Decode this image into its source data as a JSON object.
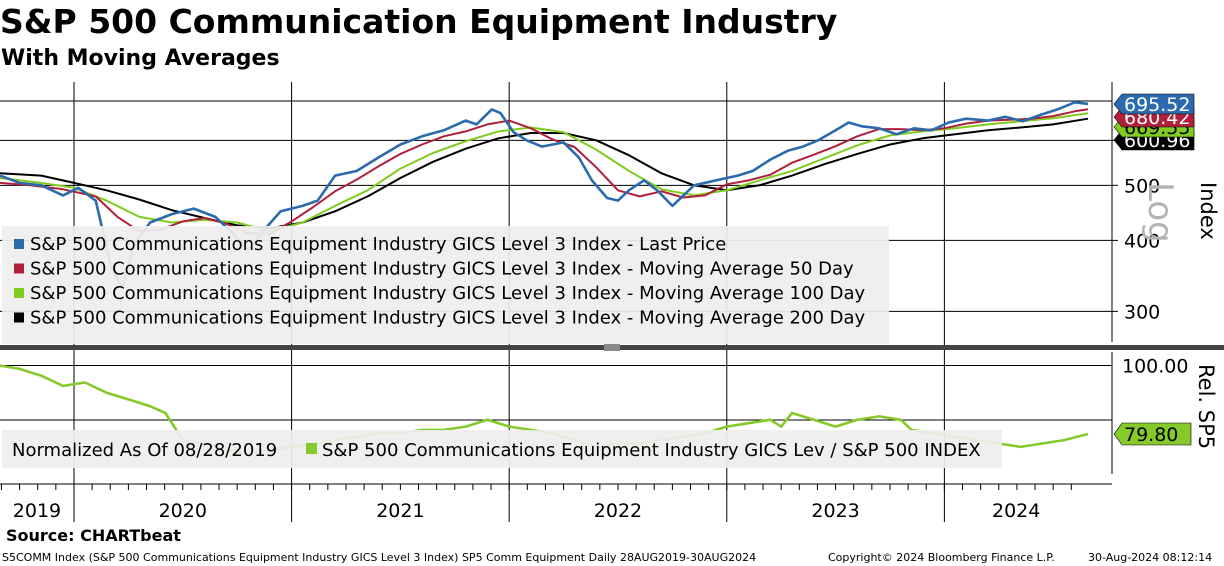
{
  "header": {
    "title": "S&P 500 Communication Equipment Industry",
    "subtitle": "With Moving Averages"
  },
  "source": "Source: CHARTbeat",
  "footer": {
    "description": "S5COMM Index (S&P 500 Communications Equipment Industry GICS Level 3 Index) SP5 Comm Equipment  Daily 28AUG2019-30AUG2024",
    "copyright": "Copyright© 2024 Bloomberg Finance L.P.",
    "timestamp": "30-Aug-2024 08:12:14"
  },
  "colors": {
    "last_price": "#2a6aad",
    "ma50": "#b0203a",
    "ma100": "#7fcc1e",
    "ma200": "#000000",
    "relative": "#86c92a",
    "grid": "#d9d9d9",
    "legend_bg": "#eeeeee"
  },
  "chart_data": [
    {
      "type": "line",
      "scale": "log",
      "scale_label": "Log",
      "ylabel": "Index",
      "yticks": [
        300,
        400,
        500,
        600
      ],
      "ylim": [
        265,
        760
      ],
      "x_years": [
        "2019",
        "2020",
        "2021",
        "2022",
        "2023",
        "2024"
      ],
      "x_range": [
        2019.66,
        2024.66
      ],
      "series": [
        {
          "name": "S&P 500 Communications Equipment Industry GICS Level 3 Index - Last Price",
          "color_key": "last_price",
          "last_value_label": "695.52",
          "points": [
            [
              2019.66,
              520
            ],
            [
              2019.75,
              505
            ],
            [
              2019.85,
              500
            ],
            [
              2019.95,
              480
            ],
            [
              2020.02,
              495
            ],
            [
              2020.1,
              470
            ],
            [
              2020.17,
              360
            ],
            [
              2020.22,
              330
            ],
            [
              2020.28,
              395
            ],
            [
              2020.35,
              430
            ],
            [
              2020.45,
              445
            ],
            [
              2020.55,
              455
            ],
            [
              2020.65,
              440
            ],
            [
              2020.72,
              415
            ],
            [
              2020.8,
              385
            ],
            [
              2020.88,
              420
            ],
            [
              2020.95,
              450
            ],
            [
              2021.05,
              460
            ],
            [
              2021.12,
              470
            ],
            [
              2021.2,
              520
            ],
            [
              2021.3,
              530
            ],
            [
              2021.4,
              560
            ],
            [
              2021.5,
              590
            ],
            [
              2021.6,
              610
            ],
            [
              2021.7,
              625
            ],
            [
              2021.8,
              650
            ],
            [
              2021.85,
              640
            ],
            [
              2021.92,
              680
            ],
            [
              2021.96,
              670
            ],
            [
              2022.02,
              620
            ],
            [
              2022.08,
              600
            ],
            [
              2022.15,
              585
            ],
            [
              2022.25,
              595
            ],
            [
              2022.32,
              560
            ],
            [
              2022.38,
              510
            ],
            [
              2022.45,
              475
            ],
            [
              2022.5,
              470
            ],
            [
              2022.55,
              490
            ],
            [
              2022.62,
              510
            ],
            [
              2022.68,
              490
            ],
            [
              2022.75,
              460
            ],
            [
              2022.85,
              500
            ],
            [
              2022.95,
              510
            ],
            [
              2023.05,
              520
            ],
            [
              2023.12,
              530
            ],
            [
              2023.2,
              555
            ],
            [
              2023.28,
              575
            ],
            [
              2023.35,
              585
            ],
            [
              2023.42,
              600
            ],
            [
              2023.5,
              625
            ],
            [
              2023.56,
              645
            ],
            [
              2023.62,
              635
            ],
            [
              2023.7,
              630
            ],
            [
              2023.78,
              615
            ],
            [
              2023.86,
              630
            ],
            [
              2023.94,
              625
            ],
            [
              2024.02,
              645
            ],
            [
              2024.1,
              655
            ],
            [
              2024.2,
              650
            ],
            [
              2024.28,
              660
            ],
            [
              2024.36,
              648
            ],
            [
              2024.44,
              665
            ],
            [
              2024.52,
              680
            ],
            [
              2024.6,
              700
            ],
            [
              2024.66,
              695.52
            ]
          ]
        },
        {
          "name": "S&P 500 Communications Equipment Industry GICS Level 3 Index - Moving Average 50 Day",
          "color_key": "ma50",
          "last_value_label": "680.42",
          "points": [
            [
              2019.66,
              505
            ],
            [
              2019.8,
              500
            ],
            [
              2019.95,
              492
            ],
            [
              2020.1,
              478
            ],
            [
              2020.2,
              440
            ],
            [
              2020.3,
              415
            ],
            [
              2020.4,
              418
            ],
            [
              2020.5,
              432
            ],
            [
              2020.6,
              438
            ],
            [
              2020.7,
              428
            ],
            [
              2020.8,
              412
            ],
            [
              2020.9,
              410
            ],
            [
              2021.0,
              432
            ],
            [
              2021.1,
              458
            ],
            [
              2021.2,
              488
            ],
            [
              2021.3,
              512
            ],
            [
              2021.4,
              540
            ],
            [
              2021.5,
              568
            ],
            [
              2021.6,
              590
            ],
            [
              2021.7,
              610
            ],
            [
              2021.8,
              622
            ],
            [
              2021.9,
              640
            ],
            [
              2022.0,
              650
            ],
            [
              2022.1,
              630
            ],
            [
              2022.2,
              602
            ],
            [
              2022.3,
              584
            ],
            [
              2022.4,
              538
            ],
            [
              2022.5,
              490
            ],
            [
              2022.6,
              478
            ],
            [
              2022.7,
              488
            ],
            [
              2022.8,
              476
            ],
            [
              2022.9,
              480
            ],
            [
              2023.0,
              502
            ],
            [
              2023.1,
              510
            ],
            [
              2023.2,
              522
            ],
            [
              2023.3,
              548
            ],
            [
              2023.4,
              566
            ],
            [
              2023.5,
              586
            ],
            [
              2023.6,
              610
            ],
            [
              2023.7,
              628
            ],
            [
              2023.8,
              628
            ],
            [
              2023.9,
              625
            ],
            [
              2024.0,
              630
            ],
            [
              2024.1,
              642
            ],
            [
              2024.2,
              650
            ],
            [
              2024.3,
              652
            ],
            [
              2024.4,
              655
            ],
            [
              2024.5,
              662
            ],
            [
              2024.6,
              675
            ],
            [
              2024.66,
              680.42
            ]
          ]
        },
        {
          "name": "S&P 500 Communications Equipment Industry GICS Level 3 Index - Moving Average 100 Day",
          "color_key": "ma100",
          "last_value_label": "669.55",
          "points": [
            [
              2019.66,
              515
            ],
            [
              2019.85,
              505
            ],
            [
              2020.0,
              495
            ],
            [
              2020.15,
              470
            ],
            [
              2020.3,
              440
            ],
            [
              2020.45,
              430
            ],
            [
              2020.6,
              435
            ],
            [
              2020.75,
              430
            ],
            [
              2020.9,
              415
            ],
            [
              2021.05,
              430
            ],
            [
              2021.2,
              460
            ],
            [
              2021.35,
              490
            ],
            [
              2021.5,
              535
            ],
            [
              2021.65,
              570
            ],
            [
              2021.8,
              598
            ],
            [
              2021.95,
              622
            ],
            [
              2022.1,
              632
            ],
            [
              2022.25,
              620
            ],
            [
              2022.4,
              578
            ],
            [
              2022.55,
              530
            ],
            [
              2022.7,
              492
            ],
            [
              2022.85,
              480
            ],
            [
              2023.0,
              490
            ],
            [
              2023.15,
              510
            ],
            [
              2023.3,
              530
            ],
            [
              2023.45,
              558
            ],
            [
              2023.6,
              588
            ],
            [
              2023.75,
              612
            ],
            [
              2023.9,
              622
            ],
            [
              2024.05,
              630
            ],
            [
              2024.2,
              640
            ],
            [
              2024.35,
              648
            ],
            [
              2024.5,
              656
            ],
            [
              2024.66,
              669.55
            ]
          ]
        },
        {
          "name": "S&P 500 Communications Equipment Industry GICS Level 3 Index - Moving Average 200 Day",
          "color_key": "ma200",
          "last_value_label": "600.96",
          "points": [
            [
              2019.66,
              525
            ],
            [
              2019.85,
              520
            ],
            [
              2020.0,
              505
            ],
            [
              2020.15,
              490
            ],
            [
              2020.3,
              472
            ],
            [
              2020.45,
              452
            ],
            [
              2020.6,
              438
            ],
            [
              2020.75,
              425
            ],
            [
              2020.9,
              420
            ],
            [
              2021.05,
              430
            ],
            [
              2021.2,
              450
            ],
            [
              2021.35,
              478
            ],
            [
              2021.5,
              515
            ],
            [
              2021.65,
              550
            ],
            [
              2021.8,
              580
            ],
            [
              2021.95,
              605
            ],
            [
              2022.1,
              618
            ],
            [
              2022.25,
              618
            ],
            [
              2022.4,
              600
            ],
            [
              2022.55,
              565
            ],
            [
              2022.7,
              525
            ],
            [
              2022.85,
              500
            ],
            [
              2023.0,
              490
            ],
            [
              2023.15,
              500
            ],
            [
              2023.3,
              520
            ],
            [
              2023.45,
              545
            ],
            [
              2023.6,
              568
            ],
            [
              2023.75,
              590
            ],
            [
              2023.9,
              605
            ],
            [
              2024.05,
              615
            ],
            [
              2024.2,
              625
            ],
            [
              2024.35,
              632
            ],
            [
              2024.5,
              640
            ],
            [
              2024.66,
              655
            ]
          ]
        }
      ],
      "legend": [
        "S&P 500 Communications Equipment Industry GICS Level 3 Index - Last Price",
        "S&P 500 Communications Equipment Industry GICS Level 3 Index - Moving Average 50 Day",
        "S&P 500 Communications Equipment Industry GICS Level 3 Index - Moving Average 100 Day",
        "S&P 500 Communications Equipment Industry GICS Level 3 Index - Moving Average 200 Day"
      ]
    },
    {
      "type": "line",
      "ylabel": "Rel. SP5",
      "yticks": [
        100
      ],
      "ytick_labels": [
        "100.00"
      ],
      "ylim": [
        68,
        104
      ],
      "series": [
        {
          "name": "S&P 500 Communications Equipment Industry GICS Lev / S&P 500 INDEX",
          "color_key": "relative",
          "last_value_label": "79.80",
          "points": [
            [
              2019.66,
              100
            ],
            [
              2019.75,
              99
            ],
            [
              2019.85,
              97
            ],
            [
              2019.95,
              94
            ],
            [
              2020.05,
              95
            ],
            [
              2020.15,
              92
            ],
            [
              2020.25,
              90
            ],
            [
              2020.35,
              88
            ],
            [
              2020.42,
              86
            ],
            [
              2020.5,
              78
            ],
            [
              2020.6,
              77
            ],
            [
              2020.7,
              75
            ],
            [
              2020.8,
              74
            ],
            [
              2020.9,
              75
            ],
            [
              2021.0,
              76
            ],
            [
              2021.1,
              77
            ],
            [
              2021.2,
              78
            ],
            [
              2021.3,
              79
            ],
            [
              2021.4,
              80
            ],
            [
              2021.5,
              80
            ],
            [
              2021.6,
              81
            ],
            [
              2021.7,
              81
            ],
            [
              2021.8,
              82
            ],
            [
              2021.9,
              84
            ],
            [
              2022.0,
              82
            ],
            [
              2022.1,
              81
            ],
            [
              2022.2,
              80
            ],
            [
              2022.3,
              78
            ],
            [
              2022.4,
              76
            ],
            [
              2022.5,
              77
            ],
            [
              2022.6,
              77
            ],
            [
              2022.7,
              78
            ],
            [
              2022.8,
              79
            ],
            [
              2022.9,
              80
            ],
            [
              2023.0,
              82
            ],
            [
              2023.1,
              83
            ],
            [
              2023.2,
              84
            ],
            [
              2023.25,
              82
            ],
            [
              2023.3,
              86
            ],
            [
              2023.4,
              84
            ],
            [
              2023.5,
              82
            ],
            [
              2023.6,
              84
            ],
            [
              2023.7,
              85
            ],
            [
              2023.8,
              84
            ],
            [
              2023.85,
              81
            ],
            [
              2023.95,
              80
            ],
            [
              2024.05,
              79
            ],
            [
              2024.15,
              78
            ],
            [
              2024.25,
              77
            ],
            [
              2024.35,
              76
            ],
            [
              2024.45,
              77
            ],
            [
              2024.55,
              78
            ],
            [
              2024.66,
              79.8
            ]
          ]
        }
      ],
      "legend_prefix": "Normalized As Of 08/28/2019",
      "legend": [
        "S&P 500 Communications Equipment Industry GICS Lev / S&P 500 INDEX"
      ]
    }
  ]
}
